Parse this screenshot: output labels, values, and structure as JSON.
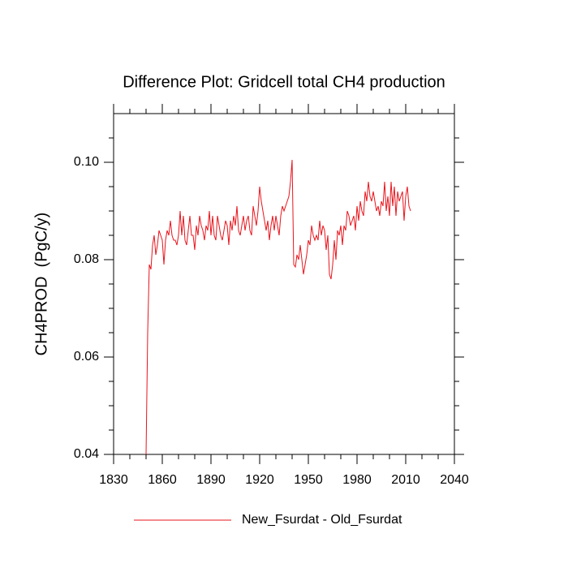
{
  "chart_data": {
    "type": "line",
    "title": "Difference Plot: Gridcell total CH4 production",
    "y_label": "CH4PROD  (PgC/y)",
    "x": [
      1850,
      1851,
      1852,
      1853,
      1854,
      1855,
      1856,
      1857,
      1858,
      1859,
      1860,
      1861,
      1862,
      1863,
      1864,
      1865,
      1866,
      1867,
      1868,
      1869,
      1870,
      1871,
      1872,
      1873,
      1874,
      1875,
      1876,
      1877,
      1878,
      1879,
      1880,
      1881,
      1882,
      1883,
      1884,
      1885,
      1886,
      1887,
      1888,
      1889,
      1890,
      1891,
      1892,
      1893,
      1894,
      1895,
      1896,
      1897,
      1898,
      1899,
      1900,
      1901,
      1902,
      1903,
      1904,
      1905,
      1906,
      1907,
      1908,
      1909,
      1910,
      1911,
      1912,
      1913,
      1914,
      1915,
      1916,
      1917,
      1918,
      1919,
      1920,
      1921,
      1922,
      1923,
      1924,
      1925,
      1926,
      1927,
      1928,
      1929,
      1930,
      1931,
      1932,
      1933,
      1934,
      1935,
      1936,
      1937,
      1938,
      1939,
      1940,
      1941,
      1942,
      1943,
      1944,
      1945,
      1946,
      1947,
      1948,
      1949,
      1950,
      1951,
      1952,
      1953,
      1954,
      1955,
      1956,
      1957,
      1958,
      1959,
      1960,
      1961,
      1962,
      1963,
      1964,
      1965,
      1966,
      1967,
      1968,
      1969,
      1970,
      1971,
      1972,
      1973,
      1974,
      1975,
      1976,
      1977,
      1978,
      1979,
      1980,
      1981,
      1982,
      1983,
      1984,
      1985,
      1986,
      1987,
      1988,
      1989,
      1990,
      1991,
      1992,
      1993,
      1994,
      1995,
      1996,
      1997,
      1998,
      1999,
      2000,
      2001,
      2002,
      2003,
      2004,
      2005,
      2006,
      2007,
      2008,
      2009,
      2010,
      2011,
      2012,
      2013
    ],
    "series": [
      {
        "name": "New_Fsurdat - Old_Fsurdat",
        "color": "#e8141c",
        "values": [
          0.04,
          0.065,
          0.079,
          0.078,
          0.083,
          0.085,
          0.081,
          0.083,
          0.086,
          0.085,
          0.084,
          0.079,
          0.084,
          0.086,
          0.085,
          0.088,
          0.085,
          0.084,
          0.084,
          0.083,
          0.085,
          0.09,
          0.085,
          0.089,
          0.084,
          0.083,
          0.086,
          0.089,
          0.085,
          0.085,
          0.082,
          0.087,
          0.085,
          0.089,
          0.087,
          0.086,
          0.084,
          0.087,
          0.086,
          0.09,
          0.085,
          0.089,
          0.085,
          0.084,
          0.089,
          0.087,
          0.085,
          0.084,
          0.086,
          0.088,
          0.087,
          0.083,
          0.088,
          0.086,
          0.089,
          0.087,
          0.091,
          0.086,
          0.085,
          0.087,
          0.089,
          0.086,
          0.088,
          0.089,
          0.086,
          0.085,
          0.091,
          0.089,
          0.087,
          0.09,
          0.095,
          0.092,
          0.09,
          0.088,
          0.086,
          0.088,
          0.084,
          0.087,
          0.089,
          0.086,
          0.089,
          0.087,
          0.085,
          0.089,
          0.091,
          0.09,
          0.091,
          0.092,
          0.093,
          0.096,
          0.1005,
          0.079,
          0.0785,
          0.081,
          0.08,
          0.083,
          0.08,
          0.077,
          0.079,
          0.081,
          0.084,
          0.083,
          0.087,
          0.085,
          0.084,
          0.085,
          0.084,
          0.088,
          0.085,
          0.087,
          0.086,
          0.082,
          0.085,
          0.077,
          0.076,
          0.079,
          0.084,
          0.08,
          0.086,
          0.085,
          0.087,
          0.083,
          0.087,
          0.086,
          0.09,
          0.089,
          0.087,
          0.088,
          0.089,
          0.086,
          0.091,
          0.088,
          0.092,
          0.09,
          0.089,
          0.094,
          0.092,
          0.096,
          0.093,
          0.092,
          0.094,
          0.092,
          0.09,
          0.091,
          0.089,
          0.092,
          0.091,
          0.096,
          0.09,
          0.093,
          0.089,
          0.096,
          0.091,
          0.095,
          0.089,
          0.094,
          0.092,
          0.093,
          0.094,
          0.088,
          0.093,
          0.095,
          0.091,
          0.09
        ]
      }
    ],
    "xlim": [
      1830,
      2040
    ],
    "xticks": [
      1830,
      1860,
      1890,
      1920,
      1950,
      1980,
      2010,
      2040
    ],
    "xminorticks": [
      1840,
      1850,
      1870,
      1880,
      1900,
      1910,
      1930,
      1940,
      1960,
      1970,
      1990,
      2000,
      2020,
      2030
    ],
    "ylim": [
      0.04,
      0.11
    ],
    "yticks": [
      0.04,
      0.06,
      0.08,
      {
        "value": 0.1,
        "label": "0.10"
      }
    ],
    "yminorticks": [
      0.045,
      0.05,
      0.055,
      0.065,
      0.07,
      0.075,
      0.085,
      0.09,
      0.095,
      0.105
    ],
    "grid": false,
    "legend": "bottom"
  }
}
